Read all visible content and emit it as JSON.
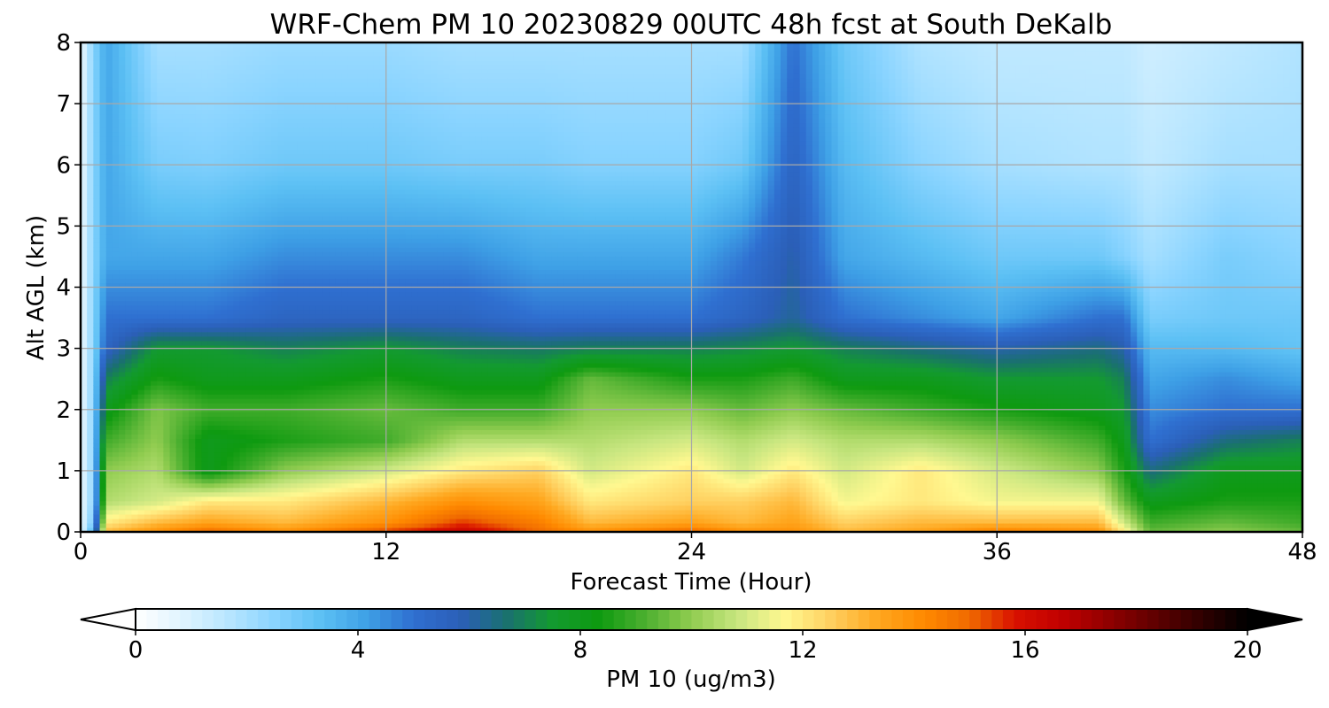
{
  "chart_data": {
    "type": "heatmap",
    "title": "WRF-Chem PM 10  20230829 00UTC 48h fcst at South DeKalb",
    "xlabel": "Forecast Time (Hour)",
    "ylabel": "Alt AGL (km)",
    "xlim": [
      0,
      48
    ],
    "ylim": [
      0,
      8
    ],
    "x_ticks": [
      0,
      12,
      24,
      36,
      48
    ],
    "y_ticks": [
      0,
      1,
      2,
      3,
      4,
      5,
      6,
      7,
      8
    ],
    "grid": true,
    "colorbar": {
      "label": "PM 10  (ug/m3)",
      "range": [
        0,
        20
      ],
      "ticks": [
        0,
        4,
        8,
        12,
        16,
        20
      ],
      "extend": "both",
      "orientation": "horizontal",
      "colors": [
        "#ffffff",
        "#e0f4ff",
        "#b8e6ff",
        "#8ad4ff",
        "#5cc0f4",
        "#3ea0e6",
        "#2f6fd0",
        "#2b5fb8",
        "#1a7070",
        "#139a30",
        "#0e9a10",
        "#4cb030",
        "#90cc50",
        "#c8e680",
        "#fff890",
        "#ffd060",
        "#ffa820",
        "#ff8a00",
        "#f06a00",
        "#d81000",
        "#c00000",
        "#900000",
        "#600000",
        "#300000",
        "#000000"
      ]
    },
    "field": {
      "description_levels_km": [
        0,
        0.15,
        0.5,
        1.0,
        1.5,
        2.0,
        2.5,
        3.0,
        3.5,
        4.5,
        6.0,
        8.0
      ],
      "columns": [
        {
          "x": 0,
          "values": [
            0.5,
            0.5,
            0.5,
            0.5,
            0.5,
            0.5,
            0.5,
            0.5,
            0.5,
            0.5,
            0.5,
            0.5
          ]
        },
        {
          "x": 0.5,
          "values": [
            4,
            3,
            2.5,
            2.5,
            2.5,
            2.5,
            2.5,
            2.5,
            2.5,
            2.5,
            2.5,
            2.5
          ]
        },
        {
          "x": 1,
          "values": [
            13,
            12,
            10.5,
            10,
            9,
            8,
            7,
            5.5,
            5,
            4,
            4,
            4
          ]
        },
        {
          "x": 3,
          "values": [
            14,
            13,
            11,
            10.5,
            10,
            9.8,
            8.5,
            7.5,
            5,
            4,
            2.8,
            2
          ]
        },
        {
          "x": 5,
          "values": [
            15,
            13.5,
            12,
            8,
            8,
            9,
            8,
            7.5,
            5,
            4,
            2.7,
            2
          ]
        },
        {
          "x": 8,
          "values": [
            14,
            13,
            12,
            10,
            8.5,
            9,
            8,
            7,
            5.5,
            4.5,
            3,
            2.2
          ]
        },
        {
          "x": 12,
          "values": [
            15.5,
            14,
            13,
            11,
            9,
            9.5,
            8.5,
            7.5,
            5.5,
            4.5,
            3,
            2.2
          ]
        },
        {
          "x": 15,
          "values": [
            16.5,
            15.5,
            14,
            12,
            10.5,
            9,
            8,
            7,
            5.5,
            4.5,
            2.8,
            2
          ]
        },
        {
          "x": 18,
          "values": [
            15,
            14.5,
            13.5,
            12.5,
            10.5,
            9,
            8,
            6.8,
            5,
            4,
            2.8,
            2
          ]
        },
        {
          "x": 20,
          "values": [
            14,
            13,
            12,
            11,
            10.5,
            10,
            9.5,
            7,
            5,
            4,
            2.6,
            2
          ]
        },
        {
          "x": 24,
          "values": [
            15,
            13.5,
            12.5,
            12,
            11,
            10,
            8.5,
            7,
            5,
            4,
            2.6,
            2
          ]
        },
        {
          "x": 26,
          "values": [
            14,
            13,
            12.5,
            11,
            10.5,
            9.5,
            8.5,
            7.2,
            5.5,
            4.8,
            3,
            2
          ]
        },
        {
          "x": 28,
          "values": [
            14,
            13.5,
            13,
            12,
            11,
            10,
            9,
            7.5,
            6.2,
            6,
            5.5,
            5
          ]
        },
        {
          "x": 30,
          "values": [
            13,
            12.5,
            11.5,
            11,
            10.5,
            9.5,
            8,
            7,
            5,
            4,
            3.5,
            3
          ]
        },
        {
          "x": 33,
          "values": [
            13.5,
            13,
            12,
            12,
            10.5,
            9,
            8,
            6.5,
            4.5,
            3.5,
            2.5,
            1.8
          ]
        },
        {
          "x": 36,
          "values": [
            14.5,
            13,
            11.5,
            11,
            10,
            8.5,
            7.5,
            6,
            4,
            3,
            2,
            1.5
          ]
        },
        {
          "x": 40,
          "values": [
            14,
            13,
            11.5,
            10,
            9,
            8,
            7.5,
            6.5,
            5,
            3,
            1.8,
            1.5
          ]
        },
        {
          "x": 41,
          "values": [
            12,
            11,
            9.5,
            8.5,
            8,
            7.5,
            7,
            6,
            5,
            2.6,
            1.8,
            1.5
          ]
        },
        {
          "x": 42,
          "values": [
            9.5,
            9,
            8,
            6.5,
            5,
            4.5,
            4,
            3.5,
            2.8,
            2,
            1.5,
            1.2
          ]
        },
        {
          "x": 45,
          "values": [
            10,
            9.5,
            8.5,
            8,
            6.5,
            5,
            4.5,
            3.5,
            3,
            2.8,
            2,
            1.5
          ]
        },
        {
          "x": 48,
          "values": [
            9.5,
            9,
            8.5,
            8,
            7,
            5,
            4,
            3.2,
            3,
            2.5,
            2,
            1.8
          ]
        }
      ]
    }
  }
}
